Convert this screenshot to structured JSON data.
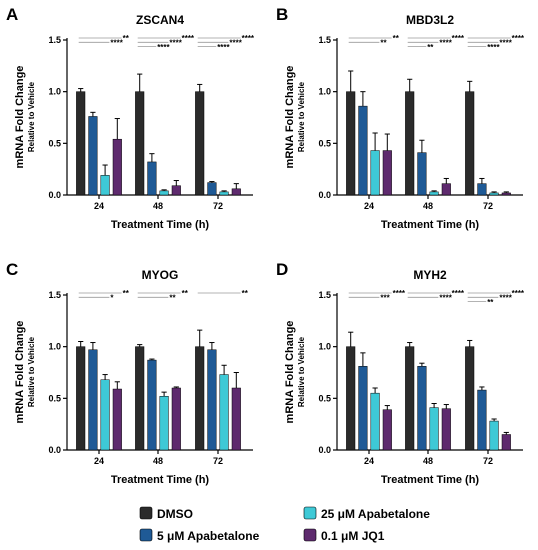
{
  "figure": {
    "legend": [
      {
        "name": "DMSO",
        "color": "#2b2b2b"
      },
      {
        "name": "5 μM Apabetalone",
        "color": "#1f5a96"
      },
      {
        "name": "25 μM Apabetalone",
        "color": "#3ec9d6"
      },
      {
        "name": "0.1 μM JQ1",
        "color": "#5e2a6e"
      }
    ]
  },
  "chart_data": [
    {
      "panel": "A",
      "type": "bar",
      "title": "ZSCAN4",
      "xlabel": "Treatment Time (h)",
      "ylabel": "mRNA Fold Change",
      "ylabel_sub": "Relative to Vehicle",
      "categories": [
        "24",
        "48",
        "72"
      ],
      "ylim": [
        0,
        1.5
      ],
      "yticks": [
        "0.0",
        "0.5",
        "1.0",
        "1.5"
      ],
      "series": [
        {
          "name": "DMSO",
          "values": [
            1.0,
            1.0,
            1.0
          ],
          "errors": [
            0.03,
            0.17,
            0.07
          ]
        },
        {
          "name": "5 μM Apabetalone",
          "values": [
            0.76,
            0.32,
            0.12
          ],
          "errors": [
            0.04,
            0.08,
            0.01
          ]
        },
        {
          "name": "25 μM Apabetalone",
          "values": [
            0.19,
            0.04,
            0.03
          ],
          "errors": [
            0.1,
            0.01,
            0.01
          ]
        },
        {
          "name": "0.1 μM JQ1",
          "values": [
            0.54,
            0.09,
            0.06
          ],
          "errors": [
            0.2,
            0.05,
            0.05
          ]
        }
      ],
      "significance": [
        [
          {
            "stars": "**",
            "span": 4
          },
          {
            "stars": "****",
            "span": 3
          }
        ],
        [
          {
            "stars": "****",
            "span": 4
          },
          {
            "stars": "****",
            "span": 3
          },
          {
            "stars": "****",
            "span": 2
          }
        ],
        [
          {
            "stars": "****",
            "span": 4
          },
          {
            "stars": "****",
            "span": 3
          },
          {
            "stars": "****",
            "span": 2
          }
        ]
      ]
    },
    {
      "panel": "B",
      "type": "bar",
      "title": "MBD3L2",
      "xlabel": "Treatment Time (h)",
      "ylabel": "mRNA Fold Change",
      "ylabel_sub": "Relative to Vehicle",
      "categories": [
        "24",
        "48",
        "72"
      ],
      "ylim": [
        0,
        1.5
      ],
      "yticks": [
        "0.0",
        "0.5",
        "1.0",
        "1.5"
      ],
      "series": [
        {
          "name": "DMSO",
          "values": [
            1.0,
            1.0,
            1.0
          ],
          "errors": [
            0.2,
            0.12,
            0.1
          ]
        },
        {
          "name": "5 μM Apabetalone",
          "values": [
            0.86,
            0.41,
            0.11
          ],
          "errors": [
            0.14,
            0.12,
            0.05
          ]
        },
        {
          "name": "25 μM Apabetalone",
          "values": [
            0.43,
            0.03,
            0.02
          ],
          "errors": [
            0.17,
            0.01,
            0.01
          ]
        },
        {
          "name": "0.1 μM JQ1",
          "values": [
            0.43,
            0.11,
            0.02
          ],
          "errors": [
            0.16,
            0.05,
            0.01
          ]
        }
      ],
      "significance": [
        [
          {
            "stars": "**",
            "span": 4
          },
          {
            "stars": "**",
            "span": 3
          }
        ],
        [
          {
            "stars": "****",
            "span": 4
          },
          {
            "stars": "****",
            "span": 3
          },
          {
            "stars": "**",
            "span": 2
          }
        ],
        [
          {
            "stars": "****",
            "span": 4
          },
          {
            "stars": "****",
            "span": 3
          },
          {
            "stars": "****",
            "span": 2
          }
        ]
      ]
    },
    {
      "panel": "C",
      "type": "bar",
      "title": "MYOG",
      "xlabel": "Treatment Time (h)",
      "ylabel": "mRNA Fold Change",
      "ylabel_sub": "Relative to Vehicle",
      "categories": [
        "24",
        "48",
        "72"
      ],
      "ylim": [
        0,
        1.5
      ],
      "yticks": [
        "0.0",
        "0.5",
        "1.0",
        "1.5"
      ],
      "series": [
        {
          "name": "DMSO",
          "values": [
            1.0,
            1.0,
            1.0
          ],
          "errors": [
            0.05,
            0.02,
            0.16
          ]
        },
        {
          "name": "5 μM Apabetalone",
          "values": [
            0.97,
            0.87,
            0.97
          ],
          "errors": [
            0.07,
            0.01,
            0.07
          ]
        },
        {
          "name": "25 μM Apabetalone",
          "values": [
            0.68,
            0.52,
            0.73
          ],
          "errors": [
            0.05,
            0.04,
            0.09
          ]
        },
        {
          "name": "0.1 μM JQ1",
          "values": [
            0.59,
            0.6,
            0.6
          ],
          "errors": [
            0.07,
            0.01,
            0.15
          ]
        }
      ],
      "significance": [
        [
          {
            "stars": "**",
            "span": 4
          },
          {
            "stars": "*",
            "span": 3
          }
        ],
        [
          {
            "stars": "**",
            "span": 4
          },
          {
            "stars": "**",
            "span": 3
          }
        ],
        [
          {
            "stars": "**",
            "span": 4
          }
        ]
      ]
    },
    {
      "panel": "D",
      "type": "bar",
      "title": "MYH2",
      "xlabel": "Treatment Time (h)",
      "ylabel": "mRNA Fold Change",
      "ylabel_sub": "Relative to Vehicle",
      "categories": [
        "24",
        "48",
        "72"
      ],
      "ylim": [
        0,
        1.5
      ],
      "yticks": [
        "0.0",
        "0.5",
        "1.0",
        "1.5"
      ],
      "series": [
        {
          "name": "DMSO",
          "values": [
            1.0,
            1.0,
            1.0
          ],
          "errors": [
            0.14,
            0.04,
            0.06
          ]
        },
        {
          "name": "5 μM Apabetalone",
          "values": [
            0.81,
            0.81,
            0.58
          ],
          "errors": [
            0.13,
            0.03,
            0.03
          ]
        },
        {
          "name": "25 μM Apabetalone",
          "values": [
            0.55,
            0.41,
            0.28
          ],
          "errors": [
            0.05,
            0.04,
            0.02
          ]
        },
        {
          "name": "0.1 μM JQ1",
          "values": [
            0.39,
            0.4,
            0.15
          ],
          "errors": [
            0.04,
            0.04,
            0.02
          ]
        }
      ],
      "significance": [
        [
          {
            "stars": "****",
            "span": 4
          },
          {
            "stars": "***",
            "span": 3
          }
        ],
        [
          {
            "stars": "****",
            "span": 4
          },
          {
            "stars": "****",
            "span": 3
          }
        ],
        [
          {
            "stars": "****",
            "span": 4
          },
          {
            "stars": "****",
            "span": 3
          },
          {
            "stars": "**",
            "span": 2
          }
        ]
      ]
    }
  ]
}
